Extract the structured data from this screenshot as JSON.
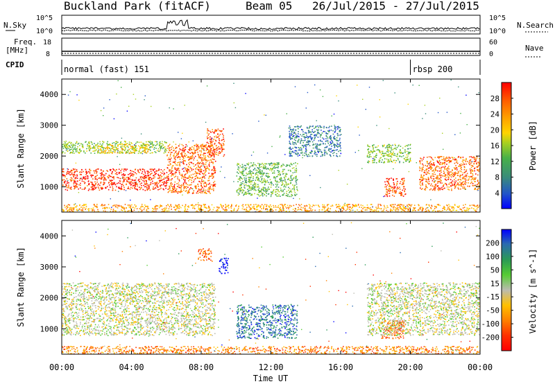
{
  "header": {
    "station": "Buckland Park (fitACF)",
    "beam": "Beam 05",
    "date_range": "26/Jul/2015 - 27/Jul/2015"
  },
  "top_panels": {
    "nsky_label": "N.Sky",
    "nsky_ticks": [
      "10^5",
      "10^0"
    ],
    "nsearch_label": "N.Search",
    "nsearch_ticks": [
      "10^5",
      "10^0"
    ],
    "freq_label_line1": "Freq.",
    "freq_label_line2": "[MHz]",
    "freq_ticks": [
      "18",
      "8"
    ],
    "nave_label": "Nave",
    "nave_ticks": [
      "60",
      "0"
    ],
    "cpid_label": "CPID",
    "cpid_segments": [
      {
        "name": "normal (fast) 151",
        "start_h": 0.0,
        "end_h": 20.0
      },
      {
        "name": "rbsp 200",
        "start_h": 20.0,
        "end_h": 24.0
      }
    ]
  },
  "chart_data": [
    {
      "type": "heatmap",
      "title": "Power",
      "xlabel": "Time UT",
      "ylabel": "Slant Range [km]",
      "xlim_hours": [
        0,
        24
      ],
      "x_ticks": [
        "00:00",
        "04:00",
        "08:00",
        "12:00",
        "16:00",
        "20:00",
        "00:00"
      ],
      "ylim": [
        180,
        4500
      ],
      "y_ticks": [
        1000,
        2000,
        3000,
        4000
      ],
      "colorbar_label": "Power [dB]",
      "colorbar_ticks": [
        4,
        8,
        12,
        16,
        20,
        24,
        28
      ],
      "colorbar_colors": [
        "#0000ff",
        "#2255c8",
        "#3a8c7a",
        "#48b048",
        "#a8d020",
        "#ffd400",
        "#ffa000",
        "#ff6000",
        "#ff0000"
      ],
      "regions": [
        {
          "t0": 0.0,
          "t1": 6.0,
          "r0": 900,
          "r1": 1600,
          "level": 0.95
        },
        {
          "t0": 6.0,
          "t1": 8.8,
          "r0": 800,
          "r1": 2400,
          "level": 0.85
        },
        {
          "t0": 8.3,
          "t1": 9.3,
          "r0": 2000,
          "r1": 2900,
          "level": 0.9
        },
        {
          "t0": 0.0,
          "t1": 6.0,
          "r0": 2100,
          "r1": 2500,
          "level": 0.45
        },
        {
          "t0": 2.0,
          "t1": 5.0,
          "r0": 2100,
          "r1": 2400,
          "level": 0.65
        },
        {
          "t0": 10.0,
          "t1": 13.5,
          "r0": 700,
          "r1": 1800,
          "level": 0.4
        },
        {
          "t0": 13.0,
          "t1": 16.0,
          "r0": 2000,
          "r1": 3000,
          "level": 0.2
        },
        {
          "t0": 18.5,
          "t1": 19.7,
          "r0": 700,
          "r1": 1300,
          "level": 0.9
        },
        {
          "t0": 20.5,
          "t1": 24.0,
          "r0": 900,
          "r1": 2000,
          "level": 0.85
        },
        {
          "t0": 17.5,
          "t1": 20.0,
          "r0": 1800,
          "r1": 2400,
          "level": 0.45
        },
        {
          "t0": 0.0,
          "t1": 24.0,
          "r0": 180,
          "r1": 450,
          "level": 0.75
        }
      ]
    },
    {
      "type": "heatmap",
      "title": "Velocity",
      "xlabel": "Time UT",
      "ylabel": "Slant Range [km]",
      "xlim_hours": [
        0,
        24
      ],
      "x_ticks": [
        "00:00",
        "04:00",
        "08:00",
        "12:00",
        "16:00",
        "20:00",
        "00:00"
      ],
      "ylim": [
        180,
        4500
      ],
      "y_ticks": [
        1000,
        2000,
        3000,
        4000
      ],
      "colorbar_label": "Velocity [m s^-1]",
      "colorbar_ticks": [
        200,
        100,
        50,
        15,
        -15,
        -50,
        -100,
        -200
      ],
      "colorbar_colors": [
        "#0000ff",
        "#2a6ab0",
        "#2a9a55",
        "#55cc33",
        "#bbbbb0",
        "#ffc000",
        "#ff8000",
        "#ff3000",
        "#ff0000"
      ],
      "regions": [
        {
          "t0": 0.0,
          "t1": 8.8,
          "r0": 800,
          "r1": 2500,
          "level": 0.0
        },
        {
          "t0": 10.0,
          "t1": 13.5,
          "r0": 700,
          "r1": 1800,
          "level": 0.7
        },
        {
          "t0": 18.3,
          "t1": 19.7,
          "r0": 700,
          "r1": 1300,
          "level": -0.6
        },
        {
          "t0": 9.0,
          "t1": 9.6,
          "r0": 2800,
          "r1": 3300,
          "level": 1.0
        },
        {
          "t0": 7.8,
          "t1": 8.6,
          "r0": 3200,
          "r1": 3600,
          "level": -0.6
        },
        {
          "t0": 17.5,
          "t1": 24.0,
          "r0": 800,
          "r1": 2500,
          "level": 0.0
        },
        {
          "t0": 0.0,
          "t1": 24.0,
          "r0": 180,
          "r1": 450,
          "level": -0.5
        }
      ]
    }
  ]
}
